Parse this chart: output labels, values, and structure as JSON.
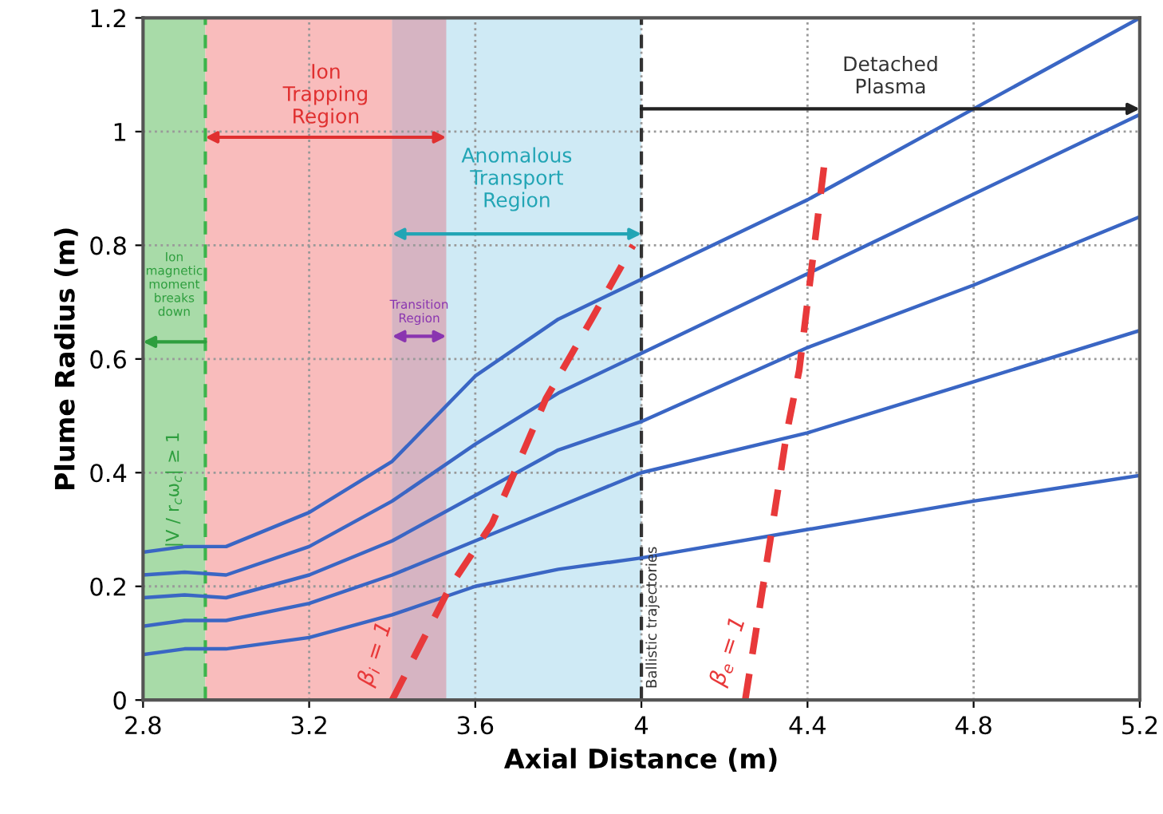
{
  "chart_data": {
    "type": "line",
    "xlabel": "Axial Distance (m)",
    "ylabel": "Plume Radius (m)",
    "xlim": [
      2.8,
      5.2
    ],
    "xticks": [
      2.8,
      3.2,
      3.6,
      4,
      4.4,
      4.8,
      5.2
    ],
    "ylim": [
      0,
      1.2
    ],
    "yticks": [
      0,
      0.2,
      0.4,
      0.6,
      0.8,
      1,
      1.2
    ],
    "grid": true,
    "legend": false,
    "marker": "none",
    "x": [
      2.8,
      2.9,
      3.0,
      3.2,
      3.4,
      3.6,
      3.8,
      4.0,
      4.4,
      4.8,
      5.2
    ],
    "series": [
      {
        "color": "#3a66c4",
        "line_style": "solid",
        "values": [
          0.26,
          0.27,
          0.27,
          0.33,
          0.42,
          0.57,
          0.67,
          0.74,
          0.88,
          1.04,
          1.2
        ]
      },
      {
        "color": "#3a66c4",
        "line_style": "solid",
        "values": [
          0.22,
          0.225,
          0.22,
          0.27,
          0.35,
          0.45,
          0.54,
          0.61,
          0.75,
          0.89,
          1.03
        ]
      },
      {
        "color": "#3a66c4",
        "line_style": "solid",
        "values": [
          0.18,
          0.185,
          0.18,
          0.22,
          0.28,
          0.36,
          0.44,
          0.49,
          0.62,
          0.73,
          0.85
        ]
      },
      {
        "color": "#3a66c4",
        "line_style": "solid",
        "values": [
          0.13,
          0.14,
          0.14,
          0.17,
          0.22,
          0.28,
          0.34,
          0.4,
          0.47,
          0.56,
          0.65
        ]
      },
      {
        "color": "#3a66c4",
        "line_style": "solid",
        "values": [
          0.08,
          0.09,
          0.09,
          0.11,
          0.15,
          0.2,
          0.23,
          0.25,
          0.3,
          0.35,
          0.395
        ]
      },
      {
        "name": "β$_{i}$ = 1",
        "color": "#e8393a",
        "line_style": "dashed",
        "x": [
          3.4,
          3.47,
          3.54,
          3.64,
          3.7,
          3.77,
          3.88,
          3.98
        ],
        "values": [
          0,
          0.1,
          0.2,
          0.31,
          0.41,
          0.53,
          0.67,
          0.8
        ]
      },
      {
        "name": "β$_{e}$ = 1",
        "color": "#e8393a",
        "line_style": "dashed",
        "x": [
          4.25,
          4.31,
          4.35,
          4.38,
          4.41,
          4.44
        ],
        "values": [
          0,
          0.28,
          0.47,
          0.58,
          0.76,
          0.94
        ]
      }
    ],
    "bands": [
      {
        "axis": "x",
        "from": 2.8,
        "to": 2.95,
        "color": "#a8dba8",
        "label": "Ion\nmagnetic\nmoment\nbreaks\ndown"
      },
      {
        "axis": "x",
        "from": 2.95,
        "to": 3.53,
        "color": "#f7a5a5",
        "label": "Ion\nTrapping\nRegion"
      },
      {
        "axis": "x",
        "from": 3.4,
        "to": 4.0,
        "color": "#bfe3f2",
        "label": "Anomalous\nTransport\nRegion"
      },
      {
        "axis": "x",
        "from": 3.4,
        "to": 3.53,
        "color": "#d6b4c2",
        "label": "Transition\nRegion"
      }
    ],
    "ref_lines": [
      {
        "axis": "x",
        "value": 2.95,
        "color": "#3cb44b",
        "line_style": "dashed",
        "label": null
      },
      {
        "axis": "x",
        "value": 4.0,
        "color": "#333333",
        "line_style": "dashed",
        "label": "Ballistic trajectories"
      }
    ],
    "annotations": [
      "|V / r$_{c}$ω$_{c}$| ≥ 1",
      "Detached\nPlasma"
    ]
  }
}
